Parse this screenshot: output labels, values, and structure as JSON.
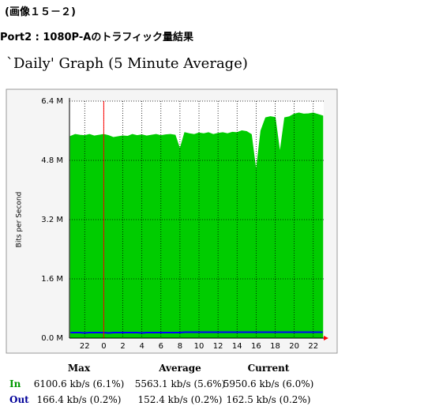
{
  "caption": "(画像１５－２)",
  "heading": "Port2 : 1080P-Aのトラフィック量結果",
  "chart_data": {
    "type": "area",
    "title": "`Daily' Graph (5 Minute Average)",
    "ylabel": "Bits per Second",
    "x": [
      -3.5,
      -3,
      -2.5,
      -2,
      -1.5,
      -1,
      -0.5,
      0,
      0.5,
      1,
      1.5,
      2,
      2.5,
      3,
      3.5,
      4,
      4.5,
      5,
      5.5,
      6,
      6.5,
      7,
      7.5,
      8,
      8.5,
      9,
      9.5,
      10,
      10.5,
      11,
      11.5,
      12,
      12.5,
      13,
      13.5,
      14,
      14.5,
      15,
      15.5,
      16,
      16.5,
      17,
      17.5,
      18,
      18.5,
      19,
      19.5,
      20,
      20.5,
      21,
      21.5,
      22,
      22.5,
      23
    ],
    "series": [
      {
        "name": "In",
        "color": "#00cc00",
        "values": [
          5.45,
          5.5,
          5.48,
          5.47,
          5.5,
          5.46,
          5.48,
          5.5,
          5.47,
          5.42,
          5.44,
          5.46,
          5.45,
          5.5,
          5.47,
          5.49,
          5.46,
          5.48,
          5.5,
          5.47,
          5.49,
          5.5,
          5.48,
          5.1,
          5.55,
          5.52,
          5.5,
          5.54,
          5.52,
          5.55,
          5.5,
          5.53,
          5.55,
          5.52,
          5.56,
          5.55,
          5.6,
          5.58,
          5.5,
          4.5,
          5.6,
          5.95,
          5.98,
          5.96,
          5.0,
          5.95,
          5.98,
          6.05,
          6.08,
          6.05,
          6.06,
          6.08,
          6.04,
          6.0
        ]
      },
      {
        "name": "Out",
        "color": "#0000ff",
        "values": [
          0.15,
          0.15,
          0.15,
          0.14,
          0.15,
          0.15,
          0.15,
          0.15,
          0.14,
          0.15,
          0.15,
          0.15,
          0.15,
          0.15,
          0.15,
          0.14,
          0.15,
          0.15,
          0.15,
          0.15,
          0.15,
          0.15,
          0.15,
          0.15,
          0.16,
          0.16,
          0.16,
          0.16,
          0.16,
          0.16,
          0.16,
          0.16,
          0.16,
          0.16,
          0.16,
          0.16,
          0.16,
          0.16,
          0.16,
          0.16,
          0.16,
          0.16,
          0.16,
          0.16,
          0.16,
          0.16,
          0.16,
          0.16,
          0.16,
          0.16,
          0.16,
          0.16,
          0.16,
          0.16
        ]
      }
    ],
    "xlim": [
      -3.6,
      23.1
    ],
    "xticks": [
      {
        "value": -2,
        "label": "22"
      },
      0,
      2,
      4,
      6,
      8,
      10,
      12,
      14,
      16,
      18,
      20,
      22
    ],
    "ylim": [
      0,
      6.4
    ],
    "yticks": [
      {
        "value": 0,
        "label": "0.0 M"
      },
      {
        "value": 1.6,
        "label": "1.6 M"
      },
      {
        "value": 3.2,
        "label": "3.2 M"
      },
      {
        "value": 4.8,
        "label": "4.8 M"
      },
      {
        "value": 6.4,
        "label": "6.4 M"
      }
    ],
    "grid": true
  },
  "stats": {
    "headers": [
      "Max",
      "Average",
      "Current"
    ],
    "rows": [
      {
        "label": "In",
        "color": "#009900",
        "cells": [
          "6100.6 kb/s (6.1%)",
          "5563.1 kb/s (5.6%)",
          "5950.6 kb/s (6.0%)"
        ]
      },
      {
        "label": "Out",
        "color": "#000099",
        "cells": [
          "166.4 kb/s (0.2%)",
          "152.4 kb/s (0.2%)",
          "162.5 kb/s (0.2%)"
        ]
      }
    ]
  }
}
